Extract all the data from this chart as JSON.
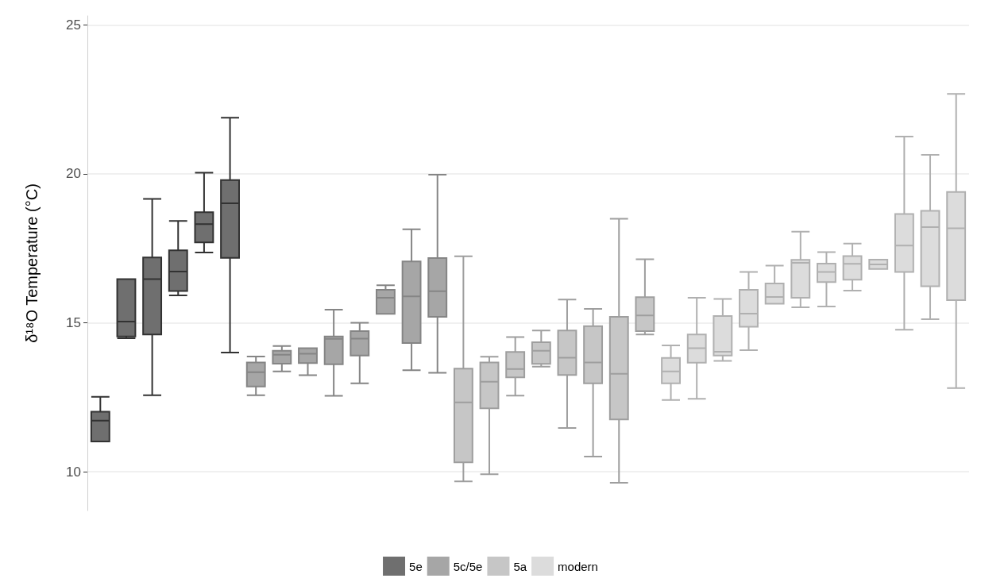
{
  "chart_data": {
    "type": "box",
    "ylabel": "δ¹⁸O Temperature (°C)",
    "categories": [
      null,
      null,
      null,
      null,
      null,
      null,
      null,
      null,
      null,
      null,
      null,
      null,
      null,
      null,
      null,
      null,
      null,
      null,
      null,
      null,
      null,
      null,
      null,
      null,
      null,
      null,
      null,
      null,
      null,
      null,
      null,
      null,
      null,
      null
    ],
    "ylim": [
      8.7,
      25.3
    ],
    "yticks": [
      10,
      15,
      20,
      25
    ],
    "grid": "y",
    "legend": "bottom",
    "tick_labels": "y",
    "series": [
      {
        "name": "5e",
        "color": "#6f6f6f",
        "boxes": [
          {
            "low": 11.02,
            "q1": 11.02,
            "median": 11.72,
            "q3": 12.02,
            "high": 12.52
          },
          {
            "low": 14.48,
            "q1": 14.54,
            "median": 15.04,
            "q3": 16.47,
            "high": 16.47
          },
          {
            "low": 12.57,
            "q1": 14.61,
            "median": 16.47,
            "q3": 17.19,
            "high": 19.16
          },
          {
            "low": 15.92,
            "q1": 16.07,
            "median": 16.72,
            "q3": 17.43,
            "high": 18.42
          },
          {
            "low": 17.36,
            "q1": 17.7,
            "median": 18.31,
            "q3": 18.71,
            "high": 20.04
          },
          {
            "low": 14.0,
            "q1": 17.18,
            "median": 19.01,
            "q3": 19.79,
            "high": 21.88
          },
          null,
          null,
          null,
          null,
          null,
          null,
          null,
          null,
          null,
          null,
          null,
          null,
          null,
          null,
          null,
          null,
          null,
          null,
          null,
          null,
          null,
          null,
          null,
          null,
          null,
          null,
          null,
          null
        ]
      },
      {
        "name": "5c/5e",
        "color": "#a6a6a6",
        "boxes": [
          null,
          null,
          null,
          null,
          null,
          null,
          {
            "low": 12.57,
            "q1": 12.86,
            "median": 13.34,
            "q3": 13.67,
            "high": 13.87
          },
          {
            "low": 13.37,
            "q1": 13.63,
            "median": 13.93,
            "q3": 14.06,
            "high": 14.22
          },
          {
            "low": 13.24,
            "q1": 13.65,
            "median": 13.96,
            "q3": 14.15,
            "high": 14.15
          },
          {
            "low": 12.55,
            "q1": 13.61,
            "median": 14.46,
            "q3": 14.54,
            "high": 15.44
          },
          {
            "low": 12.97,
            "q1": 13.9,
            "median": 14.47,
            "q3": 14.72,
            "high": 15.0
          },
          {
            "low": 15.3,
            "q1": 15.3,
            "median": 15.84,
            "q3": 16.11,
            "high": 16.26
          },
          {
            "low": 13.41,
            "q1": 14.32,
            "median": 15.89,
            "q3": 17.06,
            "high": 18.14
          },
          {
            "low": 13.32,
            "q1": 15.2,
            "median": 16.06,
            "q3": 17.17,
            "high": 19.97
          },
          null,
          null,
          null,
          null,
          null,
          null,
          null,
          null,
          null,
          null,
          null,
          null,
          null,
          null,
          null,
          null,
          null,
          null,
          null,
          null
        ]
      },
      {
        "name": "5a",
        "color": "#c6c6c6",
        "boxes": [
          null,
          null,
          null,
          null,
          null,
          null,
          null,
          null,
          null,
          null,
          null,
          null,
          null,
          null,
          {
            "low": 9.68,
            "q1": 10.32,
            "median": 12.33,
            "q3": 13.46,
            "high": 17.23
          },
          {
            "low": 9.92,
            "q1": 12.13,
            "median": 13.02,
            "q3": 13.67,
            "high": 13.86
          },
          {
            "low": 12.56,
            "q1": 13.17,
            "median": 13.45,
            "q3": 14.02,
            "high": 14.52
          },
          {
            "low": 13.53,
            "q1": 13.62,
            "median": 14.06,
            "q3": 14.35,
            "high": 14.74
          },
          {
            "low": 11.47,
            "q1": 13.25,
            "median": 13.83,
            "q3": 14.74,
            "high": 15.78
          },
          {
            "low": 10.51,
            "q1": 12.97,
            "median": 13.67,
            "q3": 14.89,
            "high": 15.47
          },
          {
            "low": 9.63,
            "q1": 11.76,
            "median": 13.29,
            "q3": 15.2,
            "high": 18.49
          },
          {
            "low": 14.61,
            "q1": 14.72,
            "median": 15.25,
            "q3": 15.86,
            "high": 17.13
          },
          null,
          null,
          null,
          null,
          null,
          null,
          null,
          null,
          null,
          null,
          null,
          null
        ]
      },
      {
        "name": "modern",
        "color": "#dcdcdc",
        "boxes": [
          null,
          null,
          null,
          null,
          null,
          null,
          null,
          null,
          null,
          null,
          null,
          null,
          null,
          null,
          null,
          null,
          null,
          null,
          null,
          null,
          null,
          null,
          {
            "low": 12.41,
            "q1": 12.97,
            "median": 13.37,
            "q3": 13.82,
            "high": 14.24
          },
          {
            "low": 12.45,
            "q1": 13.66,
            "median": 14.15,
            "q3": 14.61,
            "high": 15.84
          },
          {
            "low": 13.72,
            "q1": 13.9,
            "median": 14.03,
            "q3": 15.23,
            "high": 15.8
          },
          {
            "low": 14.08,
            "q1": 14.87,
            "median": 15.31,
            "q3": 16.11,
            "high": 16.71
          },
          {
            "low": 15.64,
            "q1": 15.64,
            "median": 15.87,
            "q3": 16.32,
            "high": 16.92
          },
          {
            "low": 15.52,
            "q1": 15.84,
            "median": 17.01,
            "q3": 17.11,
            "high": 18.06
          },
          {
            "low": 15.55,
            "q1": 16.37,
            "median": 16.71,
            "q3": 16.99,
            "high": 17.37
          },
          {
            "low": 16.08,
            "q1": 16.45,
            "median": 16.98,
            "q3": 17.24,
            "high": 17.66
          },
          {
            "low": 16.81,
            "q1": 16.81,
            "median": 16.96,
            "q3": 17.12,
            "high": 17.12
          },
          {
            "low": 14.77,
            "q1": 16.71,
            "median": 17.59,
            "q3": 18.65,
            "high": 21.25
          },
          {
            "low": 15.12,
            "q1": 16.23,
            "median": 18.21,
            "q3": 18.76,
            "high": 20.64
          },
          {
            "low": 12.81,
            "q1": 15.76,
            "median": 18.17,
            "q3": 19.39,
            "high": 22.68
          }
        ]
      }
    ]
  }
}
